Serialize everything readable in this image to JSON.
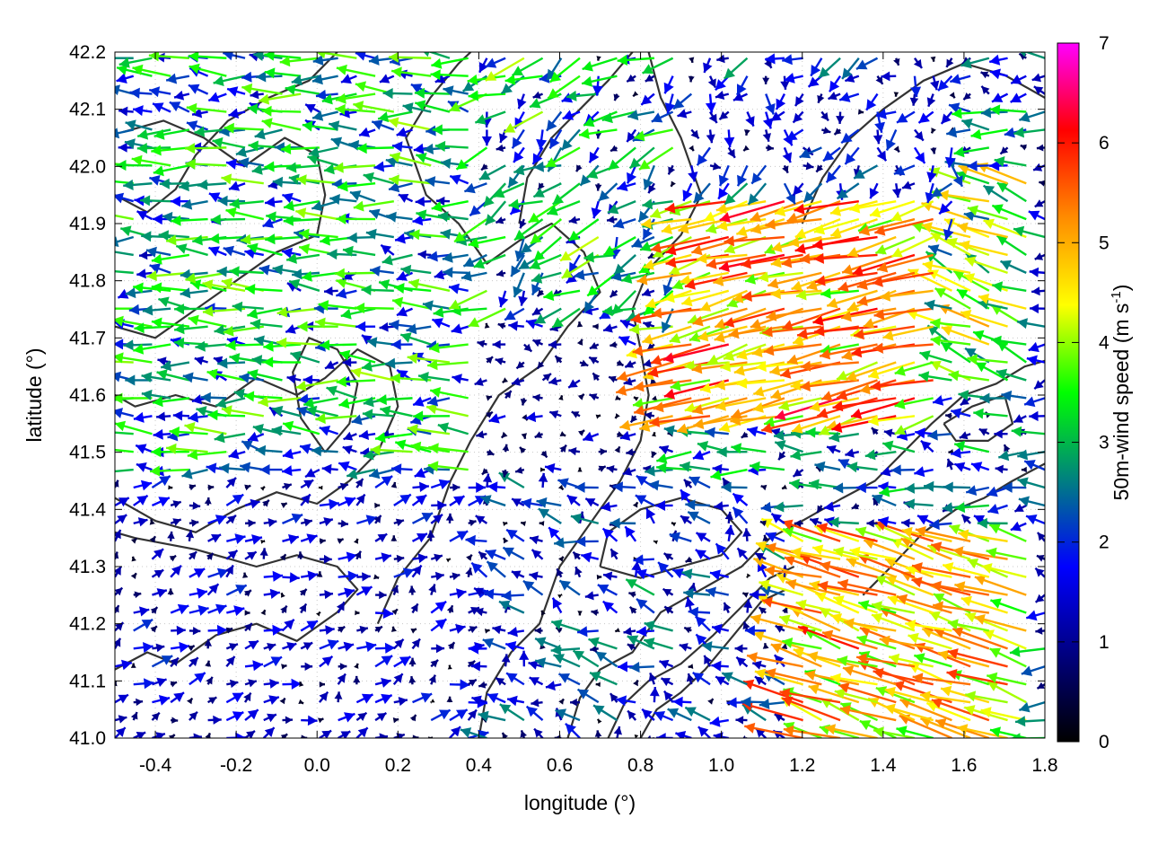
{
  "chart_data": {
    "type": "vector-field",
    "xlabel": "longitude (°)",
    "ylabel": "latitude (°)",
    "xlim": [
      -0.5,
      1.8
    ],
    "ylim": [
      41.0,
      42.2
    ],
    "xticks": [
      "-0.4",
      "-0.2",
      "0.0",
      "0.2",
      "0.4",
      "0.6",
      "0.8",
      "1.0",
      "1.2",
      "1.4",
      "1.6",
      "1.8"
    ],
    "xtick_values": [
      -0.4,
      -0.2,
      0.0,
      0.2,
      0.4,
      0.6,
      0.8,
      1.0,
      1.2,
      1.4,
      1.6,
      1.8
    ],
    "yticks": [
      "41.0",
      "41.1",
      "41.2",
      "41.3",
      "41.4",
      "41.5",
      "41.6",
      "41.7",
      "41.8",
      "41.9",
      "42.0",
      "42.1",
      "42.2"
    ],
    "ytick_values": [
      41.0,
      41.1,
      41.2,
      41.3,
      41.4,
      41.5,
      41.6,
      41.7,
      41.8,
      41.9,
      42.0,
      42.1,
      42.2
    ],
    "grid": true,
    "colorbar": {
      "label_main": "50m-wind speed (m s",
      "label_sup": "-1",
      "label_end": ")",
      "min": 0,
      "max": 7,
      "ticks": [
        "0",
        "1",
        "2",
        "3",
        "4",
        "5",
        "6",
        "7"
      ],
      "tick_values": [
        0,
        1,
        2,
        3,
        4,
        5,
        6,
        7
      ],
      "palette": [
        "#000000",
        "#000080",
        "#0000ff",
        "#008080",
        "#00ff00",
        "#ffff00",
        "#ff8c00",
        "#ff0000",
        "#ff00ff"
      ]
    },
    "contours": [
      [
        [
          -0.5,
          41.12
        ],
        [
          -0.42,
          41.15
        ],
        [
          -0.35,
          41.13
        ],
        [
          -0.25,
          41.18
        ],
        [
          -0.15,
          41.2
        ],
        [
          -0.05,
          41.17
        ],
        [
          0.05,
          41.22
        ],
        [
          0.1,
          41.26
        ],
        [
          0.05,
          41.3
        ],
        [
          -0.05,
          41.32
        ],
        [
          -0.15,
          41.3
        ],
        [
          -0.3,
          41.33
        ],
        [
          -0.45,
          41.35
        ],
        [
          -0.5,
          41.36
        ]
      ],
      [
        [
          -0.5,
          41.42
        ],
        [
          -0.4,
          41.38
        ],
        [
          -0.3,
          41.36
        ],
        [
          -0.2,
          41.4
        ],
        [
          -0.1,
          41.43
        ],
        [
          0.0,
          41.41
        ],
        [
          0.08,
          41.45
        ],
        [
          0.15,
          41.5
        ],
        [
          0.2,
          41.58
        ],
        [
          0.18,
          41.65
        ],
        [
          0.1,
          41.68
        ],
        [
          0.02,
          41.63
        ],
        [
          -0.05,
          41.6
        ],
        [
          -0.15,
          41.63
        ],
        [
          -0.25,
          41.58
        ],
        [
          -0.35,
          41.6
        ],
        [
          -0.45,
          41.58
        ],
        [
          -0.5,
          41.6
        ]
      ],
      [
        [
          -0.5,
          41.72
        ],
        [
          -0.4,
          41.7
        ],
        [
          -0.3,
          41.75
        ],
        [
          -0.2,
          41.8
        ],
        [
          -0.1,
          41.85
        ],
        [
          0.0,
          41.88
        ],
        [
          0.02,
          41.95
        ],
        [
          0.0,
          42.02
        ],
        [
          -0.08,
          42.05
        ],
        [
          -0.18,
          42.0
        ],
        [
          -0.28,
          42.05
        ],
        [
          -0.38,
          42.08
        ],
        [
          -0.48,
          42.06
        ]
      ],
      [
        [
          0.15,
          41.2
        ],
        [
          0.2,
          41.28
        ],
        [
          0.28,
          41.35
        ],
        [
          0.33,
          41.45
        ],
        [
          0.38,
          41.52
        ],
        [
          0.45,
          41.6
        ],
        [
          0.55,
          41.65
        ],
        [
          0.62,
          41.72
        ],
        [
          0.7,
          41.78
        ],
        [
          0.66,
          41.85
        ],
        [
          0.58,
          41.9
        ],
        [
          0.5,
          41.87
        ],
        [
          0.42,
          41.83
        ],
        [
          0.35,
          41.9
        ],
        [
          0.27,
          41.95
        ],
        [
          0.22,
          42.05
        ],
        [
          0.28,
          42.12
        ],
        [
          0.35,
          42.18
        ],
        [
          0.38,
          42.2
        ]
      ],
      [
        [
          0.4,
          41.0
        ],
        [
          0.42,
          41.08
        ],
        [
          0.48,
          41.15
        ],
        [
          0.55,
          41.2
        ],
        [
          0.6,
          41.3
        ],
        [
          0.68,
          41.38
        ],
        [
          0.75,
          41.45
        ],
        [
          0.8,
          41.52
        ],
        [
          0.82,
          41.6
        ],
        [
          0.8,
          41.68
        ],
        [
          0.78,
          41.75
        ],
        [
          0.82,
          41.82
        ],
        [
          0.9,
          41.88
        ],
        [
          0.95,
          41.95
        ],
        [
          0.9,
          42.05
        ],
        [
          0.85,
          42.12
        ],
        [
          0.82,
          42.2
        ]
      ],
      [
        [
          0.62,
          41.0
        ],
        [
          0.65,
          41.07
        ],
        [
          0.7,
          41.12
        ],
        [
          0.78,
          41.15
        ],
        [
          0.85,
          41.22
        ],
        [
          0.95,
          41.26
        ],
        [
          1.05,
          41.3
        ],
        [
          1.12,
          41.35
        ],
        [
          1.2,
          41.38
        ],
        [
          1.3,
          41.42
        ],
        [
          1.38,
          41.45
        ],
        [
          1.45,
          41.5
        ],
        [
          1.52,
          41.55
        ],
        [
          1.6,
          41.6
        ],
        [
          1.68,
          41.62
        ],
        [
          1.75,
          41.65
        ],
        [
          1.8,
          41.66
        ]
      ],
      [
        [
          0.72,
          41.0
        ],
        [
          0.76,
          41.06
        ],
        [
          0.82,
          41.1
        ],
        [
          0.9,
          41.13
        ],
        [
          0.98,
          41.18
        ],
        [
          1.05,
          41.23
        ],
        [
          1.12,
          41.28
        ],
        [
          1.18,
          41.3
        ]
      ],
      [
        [
          0.8,
          41.0
        ],
        [
          0.84,
          41.05
        ],
        [
          0.9,
          41.08
        ],
        [
          0.96,
          41.12
        ],
        [
          1.03,
          41.18
        ],
        [
          1.1,
          41.24
        ],
        [
          1.16,
          41.26
        ]
      ],
      [
        [
          0.7,
          41.3
        ],
        [
          0.8,
          41.28
        ],
        [
          0.9,
          41.3
        ],
        [
          1.0,
          41.32
        ],
        [
          1.05,
          41.36
        ],
        [
          1.0,
          41.4
        ],
        [
          0.9,
          41.42
        ],
        [
          0.8,
          41.4
        ],
        [
          0.72,
          41.36
        ],
        [
          0.7,
          41.3
        ]
      ],
      [
        [
          1.2,
          41.9
        ],
        [
          1.25,
          41.98
        ],
        [
          1.32,
          42.05
        ],
        [
          1.4,
          42.1
        ],
        [
          1.5,
          42.15
        ],
        [
          1.6,
          42.18
        ],
        [
          1.7,
          42.16
        ],
        [
          1.8,
          42.12
        ]
      ],
      [
        [
          1.35,
          41.25
        ],
        [
          1.42,
          41.3
        ],
        [
          1.5,
          41.36
        ],
        [
          1.58,
          41.4
        ],
        [
          1.65,
          41.42
        ],
        [
          1.72,
          41.45
        ],
        [
          1.8,
          41.48
        ]
      ],
      [
        [
          -0.5,
          41.95
        ],
        [
          -0.42,
          41.92
        ],
        [
          -0.35,
          41.96
        ],
        [
          -0.3,
          42.02
        ],
        [
          -0.22,
          42.08
        ],
        [
          -0.12,
          42.12
        ],
        [
          -0.02,
          42.15
        ],
        [
          0.05,
          42.2
        ]
      ],
      [
        [
          0.5,
          41.9
        ],
        [
          0.52,
          41.98
        ],
        [
          0.58,
          42.05
        ],
        [
          0.65,
          42.1
        ],
        [
          0.72,
          42.15
        ],
        [
          0.78,
          42.2
        ]
      ],
      [
        [
          1.55,
          41.55
        ],
        [
          1.62,
          41.58
        ],
        [
          1.7,
          41.6
        ],
        [
          1.72,
          41.55
        ],
        [
          1.66,
          41.52
        ],
        [
          1.58,
          41.52
        ],
        [
          1.55,
          41.55
        ]
      ],
      [
        [
          0.02,
          41.5
        ],
        [
          0.08,
          41.55
        ],
        [
          0.1,
          41.62
        ],
        [
          0.05,
          41.68
        ],
        [
          -0.02,
          41.7
        ],
        [
          -0.06,
          41.64
        ],
        [
          -0.04,
          41.56
        ],
        [
          0.02,
          41.5
        ]
      ]
    ],
    "wind_regions": [
      {
        "lon": [
          -0.5,
          0.4
        ],
        "lat": [
          41.45,
          42.2
        ],
        "u": -2.6,
        "v": 0.15,
        "var": 1.4
      },
      {
        "lon": [
          -0.5,
          0.4
        ],
        "lat": [
          41.0,
          41.45
        ],
        "u": 0.9,
        "v": 0.5,
        "var": 1.0
      },
      {
        "lon": [
          0.35,
          0.85
        ],
        "lat": [
          41.45,
          41.75
        ],
        "u": -0.4,
        "v": 0.0,
        "var": 1.2
      },
      {
        "lon": [
          0.4,
          0.9
        ],
        "lat": [
          41.75,
          42.2
        ],
        "u": -1.8,
        "v": -1.2,
        "var": 1.8
      },
      {
        "lon": [
          0.8,
          1.55
        ],
        "lat": [
          41.55,
          41.95
        ],
        "u": -4.8,
        "v": -1.1,
        "var": 1.3
      },
      {
        "lon": [
          0.85,
          1.6
        ],
        "lat": [
          41.9,
          42.2
        ],
        "u": -0.6,
        "v": -1.0,
        "var": 1.6
      },
      {
        "lon": [
          0.4,
          1.2
        ],
        "lat": [
          41.0,
          41.45
        ],
        "u": -1.2,
        "v": 0.6,
        "var": 1.5
      },
      {
        "lon": [
          1.2,
          1.8
        ],
        "lat": [
          41.0,
          41.35
        ],
        "u": -4.5,
        "v": 1.4,
        "var": 1.2
      },
      {
        "lon": [
          1.2,
          1.8
        ],
        "lat": [
          41.35,
          41.6
        ],
        "u": -1.8,
        "v": 0.2,
        "var": 1.5
      },
      {
        "lon": [
          1.55,
          1.8
        ],
        "lat": [
          41.6,
          42.0
        ],
        "u": -3.5,
        "v": 1.2,
        "var": 1.4
      }
    ]
  }
}
